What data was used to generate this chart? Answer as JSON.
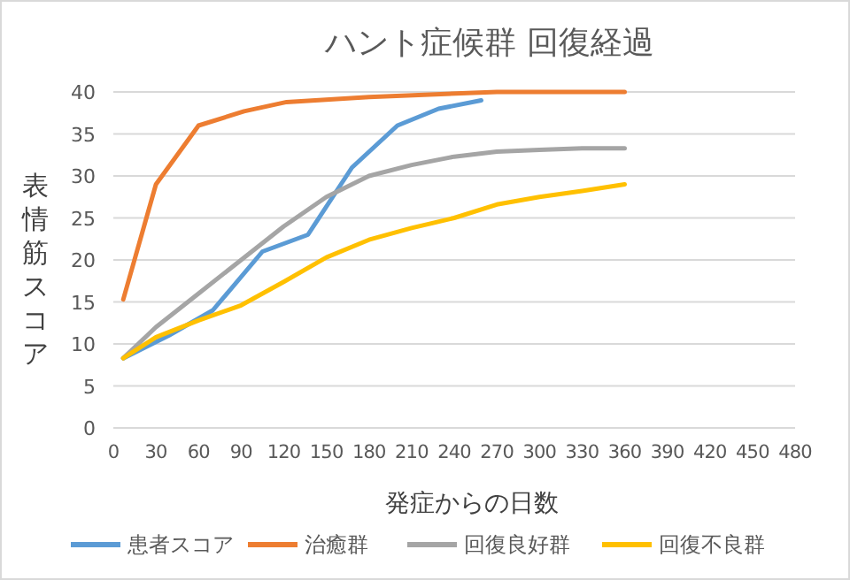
{
  "chart_data": {
    "type": "line",
    "title": "ハント症候群 回復経過",
    "xlabel": "発症からの日数",
    "ylabel": "表情筋スコア",
    "xlim": [
      0,
      480
    ],
    "xticks": [
      0,
      30,
      60,
      90,
      120,
      150,
      180,
      210,
      240,
      270,
      300,
      330,
      360,
      390,
      420,
      450,
      480
    ],
    "ylim": [
      0,
      40
    ],
    "yticks": [
      0,
      5,
      10,
      15,
      20,
      25,
      30,
      35,
      40
    ],
    "grid": "y",
    "legend": "bottom",
    "marker": "none",
    "line_style": "solid",
    "series": [
      {
        "name": "患者スコア",
        "color": "#5b9bd5",
        "x": [
          7,
          39,
          70,
          105,
          137,
          168,
          200,
          229,
          259
        ],
        "values": [
          8.3,
          11,
          14,
          21,
          23,
          31,
          36,
          38,
          39
        ]
      },
      {
        "name": "治癒群",
        "color": "#ed7d31",
        "x": [
          7,
          30,
          60,
          92,
          122,
          180,
          270,
          360
        ],
        "values": [
          15.3,
          29,
          36,
          37.7,
          38.8,
          39.4,
          40,
          40
        ]
      },
      {
        "name": "回復良好群",
        "color": "#a5a5a5",
        "x": [
          7,
          30,
          60,
          90,
          120,
          150,
          180,
          210,
          240,
          270,
          300,
          330,
          360
        ],
        "values": [
          8.3,
          12,
          16,
          20,
          24,
          27.5,
          30,
          31.3,
          32.3,
          32.9,
          33.1,
          33.3,
          33.3
        ]
      },
      {
        "name": "回復不良群",
        "color": "#ffc000",
        "x": [
          7,
          30,
          60,
          90,
          120,
          150,
          180,
          210,
          240,
          270,
          300,
          330,
          360
        ],
        "values": [
          8.3,
          10.8,
          12.8,
          14.6,
          17.4,
          20.3,
          22.4,
          23.8,
          25,
          26.6,
          27.5,
          28.2,
          29
        ]
      }
    ]
  }
}
